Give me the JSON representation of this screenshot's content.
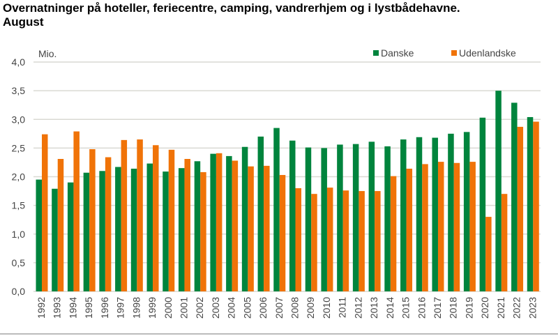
{
  "title_line1": "Overnatninger på hoteller, feriecentre, camping, vandrerhjem og i lystbådehavne.",
  "title_line2": "August",
  "chart_data": {
    "type": "bar",
    "title": "Overnatninger på hoteller, feriecentre, camping, vandrerhjem og i lystbådehavne. August",
    "ylabel": "Mio.",
    "ylim": [
      0,
      4.0
    ],
    "yticks": [
      "0,0",
      "0,5",
      "1,0",
      "1,5",
      "2,0",
      "2,5",
      "3,0",
      "3,5",
      "4,0"
    ],
    "grid": true,
    "legend_position": "top-right",
    "categories": [
      "1992",
      "1993",
      "1994",
      "1995",
      "1996",
      "1997",
      "1998",
      "1999",
      "2000",
      "2001",
      "2002",
      "2003",
      "2004",
      "2005",
      "2006",
      "2007",
      "2008",
      "2009",
      "2010",
      "2011",
      "2012",
      "2013",
      "2014",
      "2015",
      "2016",
      "2017",
      "2018",
      "2019",
      "2020",
      "2021",
      "2022",
      "2023"
    ],
    "series": [
      {
        "name": "Danske",
        "color": "#00843d",
        "values": [
          1.95,
          1.79,
          1.9,
          2.07,
          2.1,
          2.17,
          2.14,
          2.23,
          2.09,
          2.15,
          2.27,
          2.4,
          2.36,
          2.52,
          2.7,
          2.85,
          2.63,
          2.51,
          2.5,
          2.56,
          2.57,
          2.61,
          2.53,
          2.65,
          2.69,
          2.68,
          2.75,
          2.78,
          3.03,
          3.5,
          3.29,
          3.04
        ]
      },
      {
        "name": "Udenlandske",
        "color": "#f07308",
        "values": [
          2.74,
          2.31,
          2.79,
          2.48,
          2.34,
          2.64,
          2.65,
          2.55,
          2.47,
          2.31,
          2.08,
          2.41,
          2.28,
          2.18,
          2.19,
          2.03,
          1.8,
          1.7,
          1.81,
          1.76,
          1.75,
          1.75,
          2.01,
          2.14,
          2.22,
          2.26,
          2.24,
          2.26,
          1.3,
          1.7,
          2.87,
          2.96
        ]
      }
    ]
  }
}
